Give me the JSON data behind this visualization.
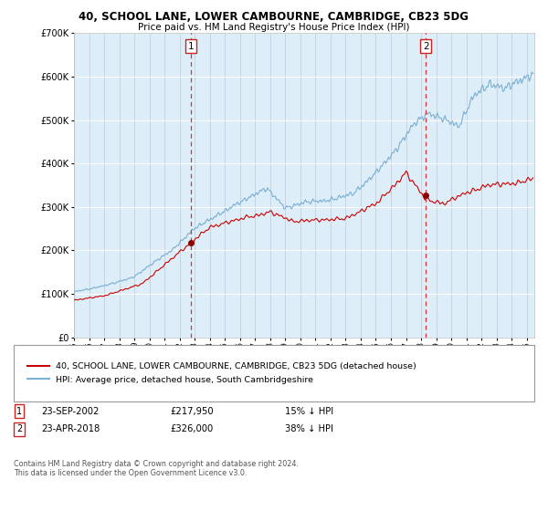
{
  "title1": "40, SCHOOL LANE, LOWER CAMBOURNE, CAMBRIDGE, CB23 5DG",
  "title2": "Price paid vs. HM Land Registry's House Price Index (HPI)",
  "legend_property": "40, SCHOOL LANE, LOWER CAMBOURNE, CAMBRIDGE, CB23 5DG (detached house)",
  "legend_hpi": "HPI: Average price, detached house, South Cambridgeshire",
  "sale1_date": "23-SEP-2002",
  "sale1_price": 217950,
  "sale1_label": "15% ↓ HPI",
  "sale2_date": "23-APR-2018",
  "sale2_price": 326000,
  "sale2_label": "38% ↓ HPI",
  "footnote": "Contains HM Land Registry data © Crown copyright and database right 2024.\nThis data is licensed under the Open Government Licence v3.0.",
  "sale1_year": 2002.73,
  "sale2_year": 2018.31,
  "color_property": "#cc0000",
  "color_hpi": "#7aafd4",
  "color_vline": "#dd3333",
  "color_bg": "#ddeef8",
  "color_shade": "#ddeef8",
  "ylim": [
    0,
    700000
  ],
  "xlim_start": 1995.0,
  "xlim_end": 2025.5
}
